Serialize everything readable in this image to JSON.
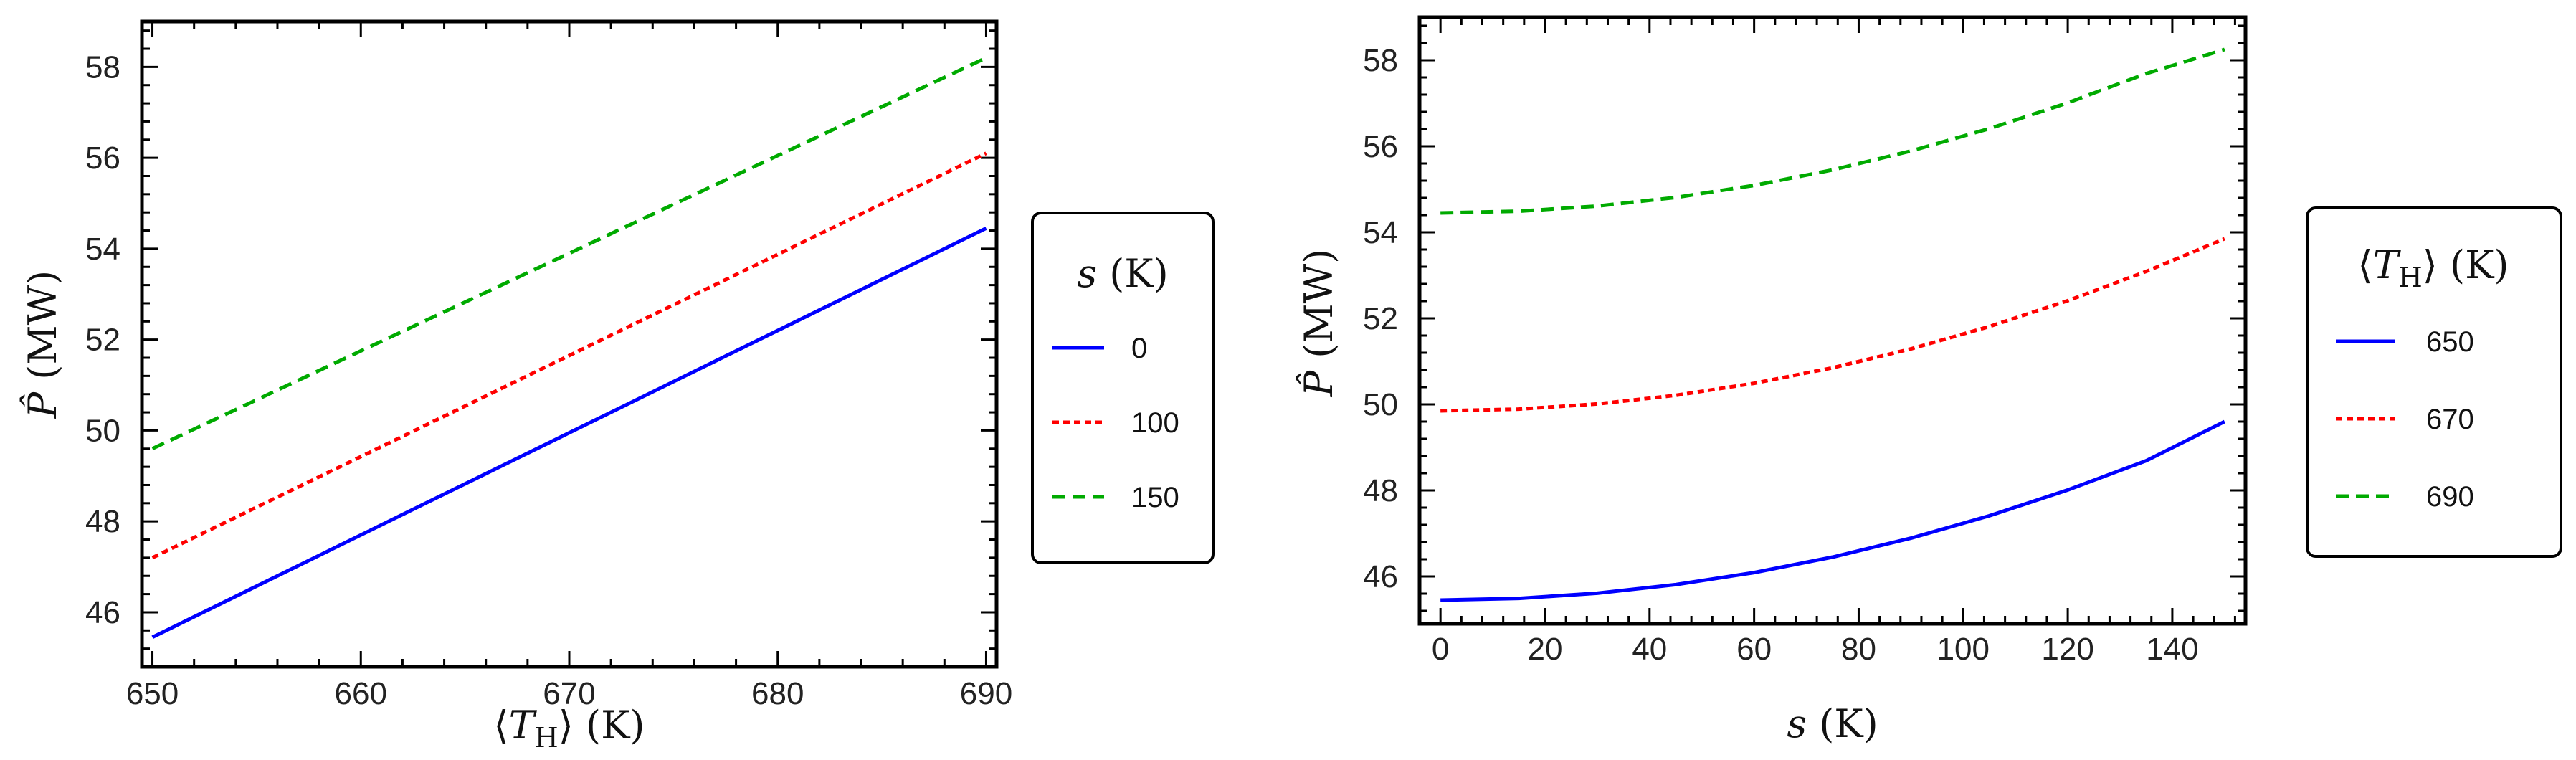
{
  "chart_data": [
    {
      "type": "line",
      "x": [
        650,
        690
      ],
      "xlim": [
        649.5,
        690.5
      ],
      "ylim": [
        44.8,
        59.0
      ],
      "xticks": [
        650,
        660,
        670,
        680,
        690
      ],
      "yticks": [
        46,
        48,
        50,
        52,
        54,
        56,
        58
      ],
      "xlabel": "⟨T_H⟩ (K)",
      "ylabel": "P̂ (MW)",
      "legend_title": "s (K)",
      "legend_position": "right",
      "series": [
        {
          "name": "0",
          "color": "#0000ff",
          "dash": "solid",
          "values": [
            45.45,
            54.45
          ]
        },
        {
          "name": "100",
          "color": "#ff0000",
          "dash": "dotted",
          "values": [
            47.2,
            56.1
          ]
        },
        {
          "name": "150",
          "color": "#00aa00",
          "dash": "dashed",
          "values": [
            49.6,
            58.2
          ]
        }
      ]
    },
    {
      "type": "line",
      "x": [
        0,
        15,
        30,
        45,
        60,
        75,
        90,
        105,
        120,
        135,
        150
      ],
      "xlim": [
        -4,
        154
      ],
      "ylim": [
        44.9,
        59.0
      ],
      "xticks": [
        0,
        20,
        40,
        60,
        80,
        100,
        120,
        140
      ],
      "yticks": [
        46,
        48,
        50,
        52,
        54,
        56,
        58
      ],
      "xlabel": "s (K)",
      "ylabel": "P̂ (MW)",
      "legend_title": "⟨T_H⟩ (K)",
      "legend_position": "right",
      "series": [
        {
          "name": "650",
          "color": "#0000ff",
          "dash": "solid",
          "values": [
            45.45,
            45.49,
            45.61,
            45.81,
            46.09,
            46.45,
            46.89,
            47.41,
            48.01,
            48.69,
            49.6
          ]
        },
        {
          "name": "670",
          "color": "#ff0000",
          "dash": "dotted",
          "values": [
            49.85,
            49.89,
            50.01,
            50.21,
            50.49,
            50.85,
            51.29,
            51.81,
            52.41,
            53.09,
            53.85
          ]
        },
        {
          "name": "690",
          "color": "#00aa00",
          "dash": "dashed",
          "values": [
            54.45,
            54.49,
            54.61,
            54.81,
            55.09,
            55.45,
            55.89,
            56.41,
            57.01,
            57.69,
            58.25
          ]
        }
      ]
    }
  ]
}
